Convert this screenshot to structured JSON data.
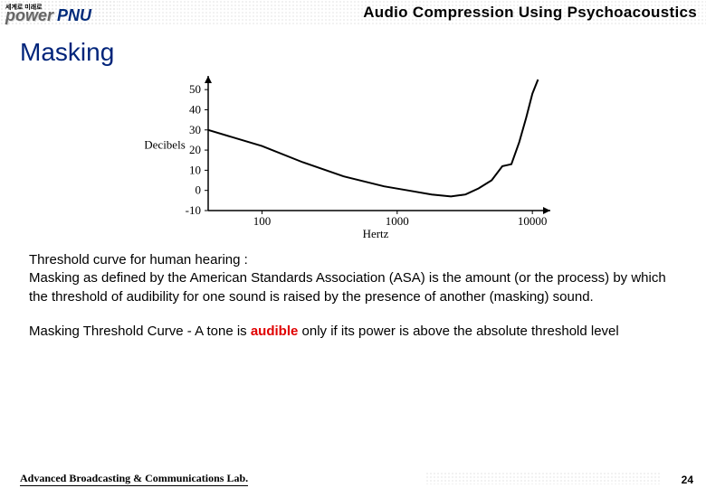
{
  "header": {
    "logo_small": "세계로 미래로",
    "logo_power": "power",
    "logo_pnu": "PNU",
    "title": "Audio Compression Using Psychoacoustics"
  },
  "slide": {
    "title": "Masking"
  },
  "chart": {
    "type": "line",
    "ylabel": "Decibels",
    "xlabel": "Hertz",
    "yticks": [
      -10,
      0,
      10,
      20,
      30,
      40,
      50
    ],
    "xticks": [
      100,
      1000,
      10000
    ],
    "ylim": [
      -10,
      55
    ],
    "line_color": "#000000",
    "axis_color": "#000000",
    "background_color": "#ffffff",
    "label_font": "Times New Roman",
    "label_fontsize": 13,
    "points": [
      [
        40,
        30
      ],
      [
        100,
        22
      ],
      [
        200,
        14
      ],
      [
        400,
        7
      ],
      [
        800,
        2
      ],
      [
        1200,
        0
      ],
      [
        1800,
        -2
      ],
      [
        2500,
        -3
      ],
      [
        3200,
        -2
      ],
      [
        4000,
        1
      ],
      [
        5000,
        5
      ],
      [
        6000,
        12
      ],
      [
        7000,
        13
      ],
      [
        8000,
        24
      ],
      [
        9000,
        36
      ],
      [
        10000,
        48
      ],
      [
        11000,
        55
      ]
    ]
  },
  "body": {
    "para1_line1": "Threshold curve for human hearing :",
    "para1_rest": "Masking as defined by the American Standards Association (ASA) is the amount (or the process) by which the threshold of audibility for one sound is raised by the presence of another (masking) sound.",
    "para2_pre": "Masking Threshold Curve - A tone is ",
    "para2_aud": "audible",
    "para2_post": " only if its power is above the absolute threshold level"
  },
  "footer": {
    "lab": "Advanced Broadcasting & Communications Lab.",
    "page": "24"
  }
}
